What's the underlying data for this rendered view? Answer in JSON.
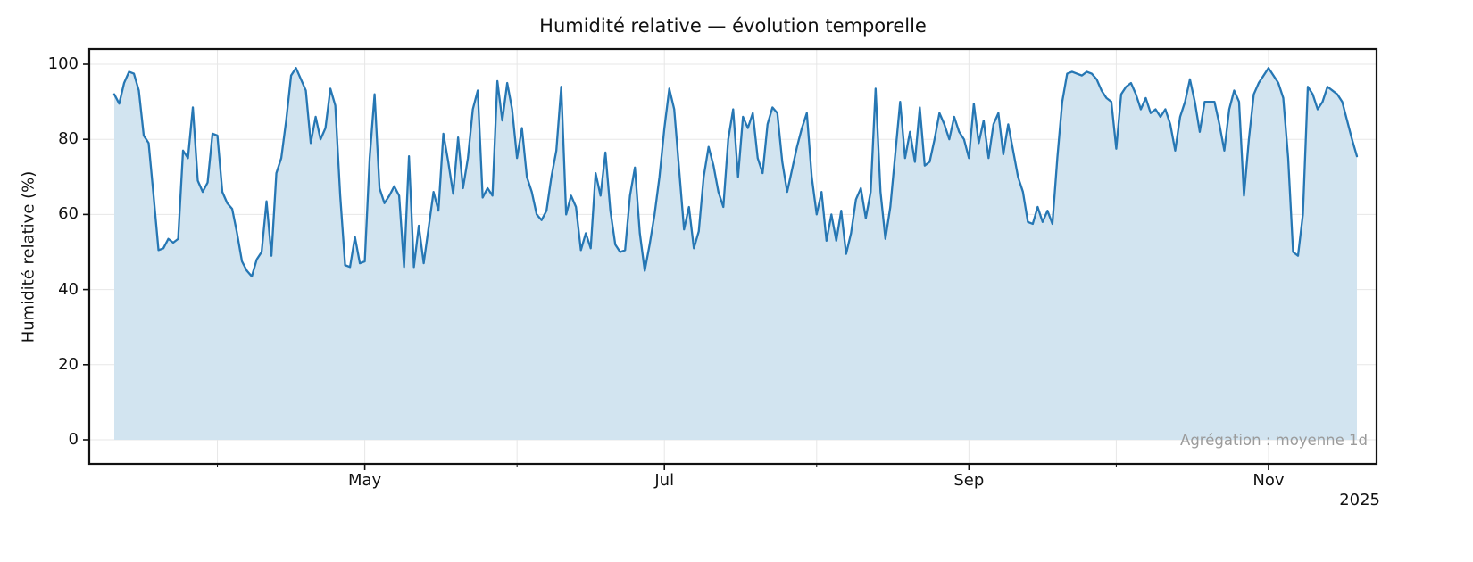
{
  "chart_data": {
    "type": "line",
    "title": "Humidité relative — évolution temporelle",
    "ylabel": "Humidité relative (%)",
    "annotation": "Agrégation : moyenne 1d",
    "year_label": "2025",
    "ylim": [
      0,
      100
    ],
    "y_ticks": [
      0,
      20,
      40,
      60,
      80,
      100
    ],
    "x_ticks": [
      {
        "day": 51,
        "label": "May"
      },
      {
        "day": 112,
        "label": "Jul"
      },
      {
        "day": 174,
        "label": "Sep"
      },
      {
        "day": 235,
        "label": "Nov"
      }
    ],
    "x_minor_tick_days": [
      21,
      82,
      143,
      204
    ],
    "x_gridline_days": [
      21,
      51,
      82,
      112,
      143,
      174,
      204,
      235
    ],
    "grid": true,
    "legend": "none",
    "line_color": "#2677b4",
    "fill_color": "#d2e4f0",
    "grid_color": "#e7e7e7",
    "axis_color": "#111111",
    "values": [
      92,
      89.5,
      95,
      98,
      97.5,
      93,
      81,
      79,
      65,
      50.5,
      51,
      53.5,
      52.5,
      53.5,
      77,
      75,
      88.5,
      69,
      66,
      68.5,
      81.5,
      81,
      66,
      63,
      61.5,
      55,
      47.5,
      45,
      43.5,
      48,
      50,
      63.5,
      49,
      71,
      75,
      85,
      97,
      99,
      96,
      93,
      79,
      86,
      80,
      83,
      93.5,
      89,
      65,
      46.5,
      46,
      54,
      47,
      47.5,
      75,
      92,
      67,
      63,
      65,
      67.5,
      65,
      46,
      75.5,
      46,
      57,
      47,
      56.5,
      66,
      61,
      81.5,
      74,
      65.5,
      80.5,
      67,
      75,
      88,
      93,
      64.5,
      67,
      65,
      95.5,
      85,
      95,
      88,
      75,
      83,
      70,
      66,
      60,
      58.5,
      61,
      70,
      77,
      94,
      60,
      65,
      62,
      50.5,
      55,
      51,
      71,
      65,
      76.5,
      61,
      52,
      50,
      50.5,
      65,
      72.5,
      55,
      45,
      52,
      60,
      70,
      83,
      93.5,
      88,
      72,
      56,
      62,
      51,
      55.5,
      70,
      78,
      73,
      66,
      62,
      80,
      88,
      70,
      86,
      83,
      87,
      75,
      71,
      84,
      88.5,
      87,
      74,
      66,
      72,
      78,
      83,
      87,
      70,
      60,
      66,
      53,
      60,
      53,
      61,
      49.5,
      55,
      64,
      67,
      59,
      66,
      93.5,
      66,
      53.5,
      62,
      76,
      90,
      75,
      82,
      74,
      88.5,
      73,
      74,
      80,
      87,
      84,
      80,
      86,
      82,
      80,
      75,
      89.5,
      79,
      85,
      75,
      84,
      87,
      76,
      84,
      77,
      70,
      66,
      58,
      57.5,
      62,
      58,
      61,
      57.5,
      75,
      90,
      97.5,
      98,
      97.5,
      97,
      98,
      97.5,
      96,
      93,
      91,
      90,
      77.5,
      92,
      94,
      95,
      92,
      88,
      91,
      87,
      88,
      86,
      88,
      84,
      77,
      86,
      90,
      96,
      90,
      82,
      90,
      90,
      90,
      84,
      77,
      88,
      93,
      90,
      65,
      80,
      92,
      95,
      97,
      99,
      97,
      95,
      91,
      75,
      50,
      49,
      60,
      94,
      92,
      88,
      90,
      94,
      93,
      92,
      90,
      85,
      80,
      75.5
    ]
  }
}
